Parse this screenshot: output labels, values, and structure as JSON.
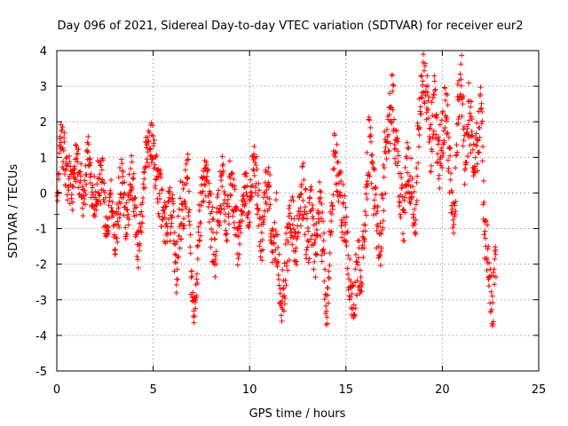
{
  "chart_data": {
    "type": "scatter",
    "title": "Day 096 of 2021, Sidereal Day-to-day VTEC variation (SDTVAR) for receiver eur2",
    "xlabel": "GPS time / hours",
    "ylabel": "SDTVAR / TECUs",
    "xlim": [
      0,
      25
    ],
    "ylim": [
      -5,
      4
    ],
    "xticks": [
      "0",
      "5",
      "10",
      "15",
      "20",
      "25"
    ],
    "yticks": [
      "-5",
      "-4",
      "-3",
      "-2",
      "-1",
      "0",
      "1",
      "2",
      "3",
      "4"
    ],
    "grid": true,
    "marker": "+",
    "color": "#ff0000",
    "series": [
      {
        "name": "SDTVAR",
        "x": [
          0.0,
          0.2,
          0.4,
          0.6,
          0.8,
          1.0,
          1.2,
          1.4,
          1.6,
          1.8,
          2.0,
          2.2,
          2.4,
          2.6,
          2.8,
          3.0,
          3.2,
          3.4,
          3.6,
          3.8,
          4.0,
          4.2,
          4.4,
          4.6,
          4.8,
          5.0,
          5.2,
          5.4,
          5.6,
          5.8,
          6.0,
          6.2,
          6.4,
          6.6,
          6.8,
          7.0,
          7.2,
          7.4,
          7.6,
          7.8,
          8.0,
          8.2,
          8.4,
          8.6,
          8.8,
          9.0,
          9.2,
          9.4,
          9.6,
          9.8,
          10.0,
          10.2,
          10.4,
          10.6,
          10.8,
          11.0,
          11.2,
          11.4,
          11.6,
          11.8,
          12.0,
          12.2,
          12.4,
          12.6,
          12.8,
          13.0,
          13.2,
          13.4,
          13.6,
          13.8,
          14.0,
          14.2,
          14.4,
          14.6,
          14.8,
          15.0,
          15.2,
          15.4,
          15.6,
          15.8,
          16.0,
          16.2,
          16.4,
          16.6,
          16.8,
          17.0,
          17.2,
          17.4,
          17.6,
          17.8,
          18.0,
          18.2,
          18.4,
          18.6,
          18.8,
          19.0,
          19.2,
          19.4,
          19.6,
          19.8,
          20.0,
          20.2,
          20.4,
          20.6,
          20.8,
          21.0,
          21.2,
          21.4,
          21.6,
          21.8,
          22.0,
          22.2,
          22.4,
          22.6,
          22.8
        ],
        "y": [
          -0.3,
          1.6,
          0.9,
          0.4,
          -0.1,
          0.9,
          0.5,
          -0.5,
          1.2,
          0.3,
          -0.3,
          0.6,
          0.1,
          -1.2,
          0.2,
          -1.5,
          -0.4,
          0.5,
          -0.8,
          0.2,
          0.3,
          -1.8,
          -0.6,
          0.9,
          1.2,
          1.4,
          0.6,
          -0.3,
          -0.9,
          -0.5,
          -0.7,
          -2.2,
          -0.6,
          -0.2,
          0.5,
          -2.9,
          -3.2,
          -0.8,
          0.2,
          0.6,
          -0.9,
          -1.8,
          -0.4,
          0.5,
          -1.0,
          0.3,
          -0.5,
          -1.6,
          -0.2,
          0.1,
          -0.4,
          0.9,
          0.2,
          -1.5,
          -0.3,
          0.4,
          -1.8,
          -0.9,
          -3.2,
          -2.5,
          -1.2,
          -0.6,
          -1.6,
          -0.2,
          0.1,
          -1.4,
          -0.6,
          -1.8,
          -0.4,
          -1.2,
          -3.4,
          -1.2,
          1.2,
          0.5,
          -0.5,
          -0.9,
          -2.6,
          -3.2,
          -1.9,
          -2.3,
          -0.5,
          1.4,
          0.3,
          -0.8,
          -1.3,
          0.8,
          1.5,
          2.8,
          1.1,
          0.2,
          -0.7,
          1.0,
          0.2,
          -0.8,
          2.3,
          3.5,
          2.5,
          1.2,
          2.9,
          0.8,
          1.6,
          2.7,
          0.5,
          -1.2,
          2.2,
          3.1,
          0.4,
          2.5,
          1.1,
          1.3,
          2.6,
          -1.2,
          -2.0,
          -3.3,
          -1.8
        ],
        "spread": [
          0.3,
          0.5,
          0.9,
          0.8,
          0.7,
          0.6,
          0.7,
          0.6,
          0.5,
          0.7,
          0.6,
          0.9,
          0.9,
          0.5,
          0.6,
          0.4,
          0.9,
          0.6,
          0.7,
          0.8,
          1.0,
          0.5,
          0.8,
          0.6,
          0.8,
          0.7,
          0.9,
          0.9,
          0.8,
          0.7,
          0.9,
          0.7,
          1.0,
          0.8,
          0.7,
          0.7,
          0.5,
          0.9,
          0.8,
          0.6,
          0.9,
          0.9,
          0.9,
          0.6,
          0.7,
          0.8,
          0.9,
          0.7,
          0.7,
          0.8,
          0.7,
          0.5,
          0.9,
          0.8,
          0.9,
          0.7,
          0.9,
          1.0,
          0.6,
          0.8,
          0.9,
          0.9,
          0.6,
          0.8,
          0.9,
          0.9,
          0.9,
          0.8,
          0.9,
          0.9,
          0.8,
          0.9,
          0.7,
          0.8,
          0.9,
          0.8,
          0.8,
          0.6,
          0.9,
          0.6,
          0.9,
          0.8,
          0.9,
          0.9,
          0.8,
          1.0,
          0.9,
          0.8,
          0.9,
          0.9,
          0.9,
          0.9,
          0.8,
          0.8,
          1.0,
          0.6,
          0.9,
          0.9,
          0.9,
          0.9,
          0.9,
          0.8,
          0.9,
          0.9,
          0.9,
          0.8,
          0.9,
          0.9,
          0.9,
          0.9,
          0.9,
          0.9,
          0.9,
          0.6,
          0.8
        ]
      }
    ]
  }
}
